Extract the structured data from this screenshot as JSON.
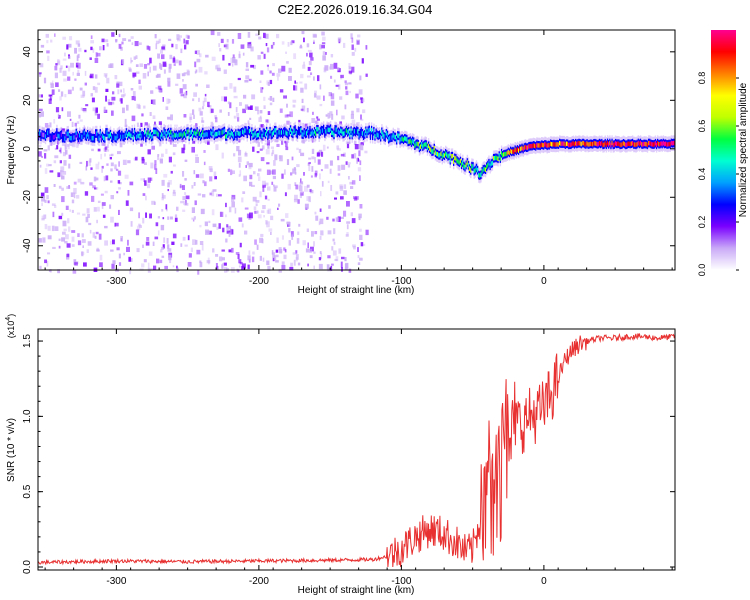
{
  "figure": {
    "title": "C2E2.2026.019.16.34.G04"
  },
  "chart_data": [
    {
      "type": "heatmap",
      "panel": "top",
      "title": "C2E2.2026.019.16.34.G04",
      "xlabel": "Height of straight line (km)",
      "ylabel": "Frequency (Hz)",
      "xlim": [
        -355,
        92
      ],
      "ylim": [
        -50,
        49
      ],
      "xticks": [
        -300,
        -200,
        -100,
        0
      ],
      "yticks": [
        -40,
        -20,
        0,
        20,
        40
      ],
      "colorbar": {
        "label": "Normalized spectral amplitude",
        "range": [
          0.0,
          1.0
        ],
        "ticks": [
          0.0,
          0.2,
          0.4,
          0.6,
          0.8
        ],
        "colormap": [
          "#ffffff",
          "#c9a9f7",
          "#7a00ff",
          "#0000ff",
          "#00a0ff",
          "#00ffd0",
          "#00ff40",
          "#c0ff00",
          "#ffff00",
          "#ff8000",
          "#ff0000",
          "#ff0090"
        ]
      },
      "signal_track": [
        {
          "x": -355,
          "f": 5.5,
          "amp": 0.25
        },
        {
          "x": -300,
          "f": 5.5,
          "amp": 0.35
        },
        {
          "x": -250,
          "f": 6.0,
          "amp": 0.45
        },
        {
          "x": -200,
          "f": 6.5,
          "amp": 0.35
        },
        {
          "x": -150,
          "f": 7.0,
          "amp": 0.4
        },
        {
          "x": -120,
          "f": 6.5,
          "amp": 0.35
        },
        {
          "x": -100,
          "f": 4.0,
          "amp": 0.45
        },
        {
          "x": -80,
          "f": 0.0,
          "amp": 0.55
        },
        {
          "x": -60,
          "f": -5.0,
          "amp": 0.55
        },
        {
          "x": -45,
          "f": -10.0,
          "amp": 0.5
        },
        {
          "x": -35,
          "f": -4.0,
          "amp": 0.5
        },
        {
          "x": -25,
          "f": -1.5,
          "amp": 0.75
        },
        {
          "x": -10,
          "f": 1.0,
          "amp": 0.9
        },
        {
          "x": 10,
          "f": 2.0,
          "amp": 0.85
        },
        {
          "x": 40,
          "f": 2.0,
          "amp": 0.9
        },
        {
          "x": 92,
          "f": 2.0,
          "amp": 0.95
        }
      ],
      "noise_region_x": [
        -355,
        -125
      ]
    },
    {
      "type": "line",
      "panel": "bottom",
      "xlabel": "Height of straight line (km)",
      "ylabel": "SNR (10 * v/v)",
      "y_multiplier": "(x10^4)",
      "y_multiplier_base": "(x10",
      "y_multiplier_exp": "4",
      "y_multiplier_close": ")",
      "xlim": [
        -355,
        92
      ],
      "ylim": [
        -0.02,
        1.58
      ],
      "xticks": [
        -300,
        -200,
        -100,
        0
      ],
      "yticks": [
        0.0,
        0.5,
        1.0,
        1.5
      ],
      "color": "#e83030",
      "series": [
        {
          "name": "SNR",
          "x": [
            -355,
            -300,
            -250,
            -200,
            -150,
            -120,
            -110,
            -100,
            -90,
            -80,
            -70,
            -60,
            -55,
            -50,
            -45,
            -40,
            -35,
            -30,
            -25,
            -20,
            -15,
            -10,
            -5,
            0,
            5,
            10,
            15,
            20,
            25,
            30,
            35,
            40,
            50,
            60,
            70,
            80,
            92
          ],
          "values": [
            0.03,
            0.04,
            0.035,
            0.04,
            0.045,
            0.05,
            0.07,
            0.12,
            0.2,
            0.25,
            0.22,
            0.15,
            0.1,
            0.12,
            0.3,
            0.55,
            0.9,
            0.98,
            1.0,
            0.97,
            0.95,
            1.0,
            1.02,
            1.05,
            1.15,
            1.25,
            1.38,
            1.44,
            1.48,
            1.5,
            1.51,
            1.52,
            1.52,
            1.53,
            1.53,
            1.52,
            1.53
          ]
        }
      ]
    }
  ]
}
